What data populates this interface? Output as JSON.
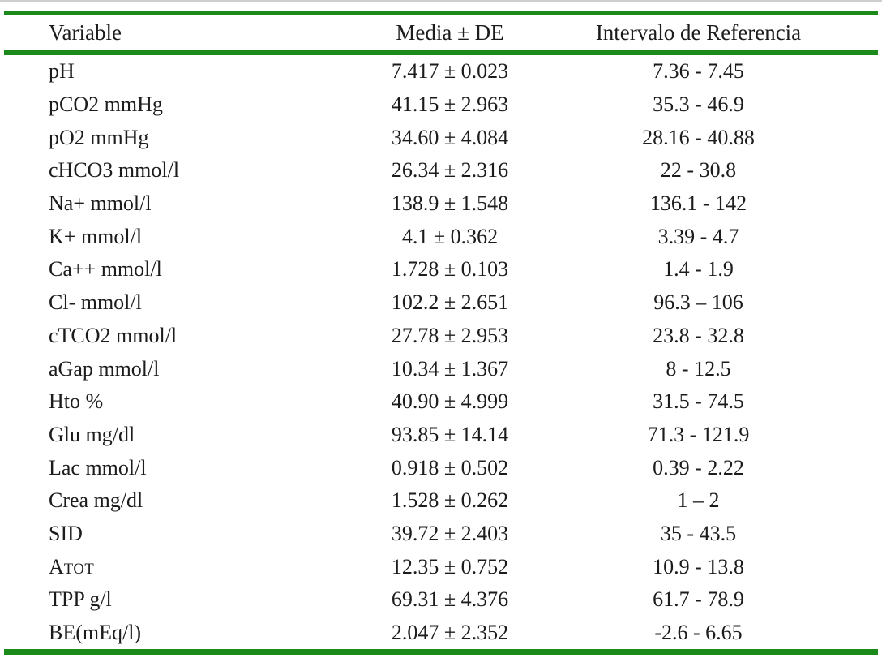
{
  "accent_color": "#1b8a1b",
  "table": {
    "columns": {
      "variable": "Variable",
      "media": "Media ± DE",
      "interval": "Intervalo de Referencia"
    },
    "rows": [
      {
        "variable": "pH",
        "media": "7.417 ± 0.023",
        "interval": "7.36 - 7.45"
      },
      {
        "variable": "pCO2 mmHg",
        "media": "41.15 ± 2.963",
        "interval": "35.3 - 46.9"
      },
      {
        "variable": "pO2 mmHg",
        "media": "34.60 ± 4.084",
        "interval": "28.16 - 40.88"
      },
      {
        "variable": "cHCO3 mmol/l",
        "media": "26.34 ± 2.316",
        "interval": "22 - 30.8"
      },
      {
        "variable": "Na+ mmol/l",
        "media": "138.9 ± 1.548",
        "interval": "136.1 - 142"
      },
      {
        "variable": "K+ mmol/l",
        "media": "4.1 ± 0.362",
        "interval": "3.39 - 4.7"
      },
      {
        "variable": "Ca++ mmol/l",
        "media": "1.728 ± 0.103",
        "interval": "1.4 - 1.9"
      },
      {
        "variable": "Cl- mmol/l",
        "media": "102.2 ± 2.651",
        "interval": "96.3 – 106"
      },
      {
        "variable": "cTCO2 mmol/l",
        "media": "27.78 ± 2.953",
        "interval": "23.8 - 32.8"
      },
      {
        "variable": "aGap mmol/l",
        "media": "10.34 ± 1.367",
        "interval": "8 - 12.5"
      },
      {
        "variable": "Hto %",
        "media": "40.90 ± 4.999",
        "interval": "31.5 - 74.5"
      },
      {
        "variable": "Glu mg/dl",
        "media": "93.85 ± 14.14",
        "interval": "71.3 - 121.9"
      },
      {
        "variable": "Lac mmol/l",
        "media": "0.918 ± 0.502",
        "interval": "0.39 - 2.22"
      },
      {
        "variable": "Crea mg/dl",
        "media": "1.528 ± 0.262",
        "interval": "1 – 2"
      },
      {
        "variable": "SID",
        "media": "39.72 ± 2.403",
        "interval": "35 - 43.5"
      },
      {
        "variable": "A",
        "variable_suffix_smallcaps": "TOT",
        "media": "12.35 ± 0.752",
        "interval": "10.9 - 13.8"
      },
      {
        "variable": "TPP g/l",
        "media": "69.31 ± 4.376",
        "interval": "61.7 - 78.9"
      },
      {
        "variable": "BE(mEq/l)",
        "media": "2.047 ± 2.352",
        "interval": "-2.6 - 6.65"
      }
    ]
  }
}
